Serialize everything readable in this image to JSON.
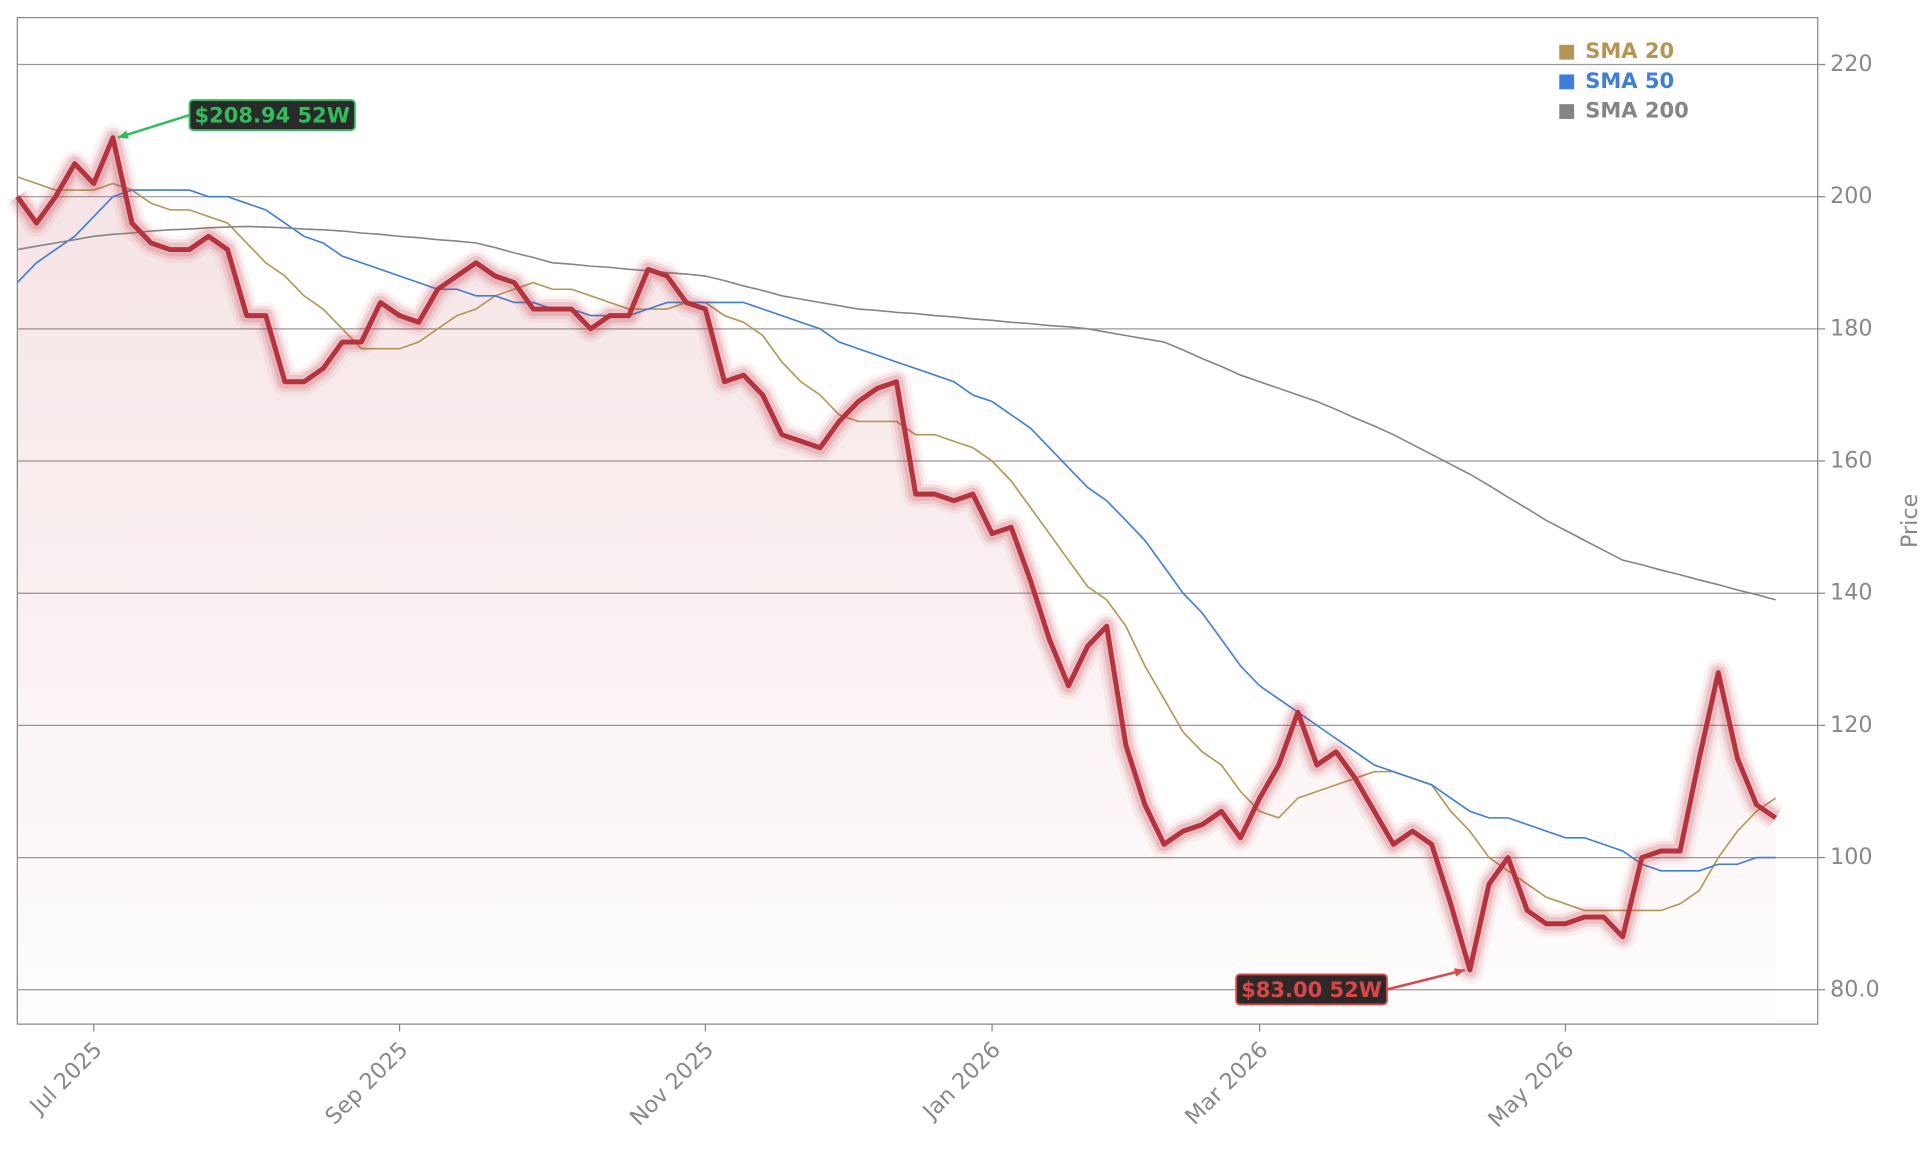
{
  "chart_data": {
    "type": "line",
    "categories": [
      null,
      null,
      null,
      null,
      "Jul 2025",
      null,
      null,
      null,
      null,
      null,
      null,
      null,
      null,
      null,
      null,
      null,
      null,
      null,
      null,
      null,
      "Sep 2025",
      null,
      null,
      null,
      null,
      null,
      null,
      null,
      null,
      null,
      null,
      null,
      null,
      null,
      null,
      null,
      "Nov 2025",
      null,
      null,
      null,
      null,
      null,
      null,
      null,
      null,
      null,
      null,
      null,
      null,
      null,
      null,
      "Jan 2026",
      null,
      null,
      null,
      null,
      null,
      null,
      null,
      null,
      null,
      null,
      null,
      null,
      null,
      "Mar 2026",
      null,
      null,
      null,
      null,
      null,
      null,
      null,
      null,
      null,
      null,
      null,
      null,
      null,
      null,
      null,
      "May 2026",
      null,
      null,
      null,
      null,
      null,
      null,
      null,
      null,
      null,
      null,
      null
    ],
    "values": [
      200,
      196,
      200,
      205,
      202,
      208.94,
      196,
      193,
      192,
      192,
      194,
      192,
      182,
      182,
      172,
      172,
      174,
      178,
      178,
      184,
      182,
      181,
      186,
      188,
      190,
      188,
      187,
      183,
      183,
      183,
      180,
      182,
      182,
      189,
      188,
      184,
      183,
      172,
      173,
      170,
      164,
      163,
      162,
      166,
      169,
      171,
      172,
      155,
      155,
      154,
      155,
      149,
      150,
      142,
      133,
      126,
      132,
      135,
      117,
      108,
      102,
      104,
      105,
      107,
      103,
      109,
      114,
      122,
      114,
      116,
      112,
      107,
      102,
      104,
      102,
      93,
      83,
      96,
      100,
      92,
      90,
      90,
      91,
      91,
      88,
      100,
      101,
      101,
      115,
      128,
      115,
      108,
      106
    ],
    "color": "#b8323c",
    "series": [
      {
        "name": "SMA 20",
        "color": "#b5954f",
        "values": [
          203,
          202,
          201,
          201,
          201,
          202,
          201,
          199,
          198,
          198,
          197,
          196,
          193,
          190,
          188,
          185,
          183,
          180,
          177,
          177,
          177,
          178,
          180,
          182,
          183,
          185,
          186,
          187,
          186,
          186,
          185,
          184,
          183,
          183,
          183,
          184,
          184,
          182,
          181,
          179,
          175,
          172,
          170,
          167,
          166,
          166,
          166,
          164,
          164,
          163,
          162,
          160,
          157,
          153,
          149,
          145,
          141,
          139,
          135,
          129,
          124,
          119,
          116,
          114,
          110,
          107,
          106,
          109,
          110,
          111,
          112,
          113,
          113,
          112,
          111,
          107,
          104,
          100,
          98,
          96,
          94,
          93,
          92,
          92,
          92,
          92,
          92,
          93,
          95,
          100,
          104,
          107,
          109
        ]
      },
      {
        "name": "SMA 50",
        "color": "#3b7de0",
        "values": [
          187,
          190,
          192,
          194,
          197,
          200,
          201,
          201,
          201,
          201,
          200,
          200,
          199,
          198,
          196,
          194,
          193,
          191,
          190,
          189,
          188,
          187,
          186,
          186,
          185,
          185,
          184,
          184,
          183,
          183,
          182,
          182,
          182,
          183,
          184,
          184,
          184,
          184,
          184,
          183,
          182,
          181,
          180,
          178,
          177,
          176,
          175,
          174,
          173,
          172,
          170,
          169,
          167,
          165,
          162,
          159,
          156,
          154,
          151,
          148,
          144,
          140,
          137,
          133,
          129,
          126,
          124,
          122,
          120,
          118,
          116,
          114,
          113,
          112,
          111,
          109,
          107,
          106,
          106,
          105,
          104,
          103,
          103,
          102,
          101,
          99,
          98,
          98,
          98,
          99,
          99,
          100,
          100
        ]
      },
      {
        "name": "SMA 200",
        "color": "#858585",
        "values": [
          192,
          192.5,
          193,
          193.5,
          194,
          194.3,
          194.5,
          194.8,
          195,
          195.1,
          195.3,
          195.4,
          195.5,
          195.4,
          195.3,
          195.1,
          195,
          194.8,
          194.5,
          194.3,
          194,
          193.8,
          193.5,
          193.3,
          193,
          192.3,
          191.5,
          190.8,
          190,
          189.8,
          189.5,
          189.3,
          189,
          188.8,
          188.5,
          188.3,
          188,
          187.3,
          186.5,
          185.8,
          185,
          184.5,
          184,
          183.5,
          183,
          182.8,
          182.5,
          182.3,
          182,
          181.8,
          181.5,
          181.3,
          181,
          180.8,
          180.5,
          180.3,
          180,
          179.5,
          179,
          178.5,
          178,
          176.8,
          175.5,
          174.3,
          173,
          172,
          171,
          170,
          169,
          167.8,
          166.5,
          165.3,
          164,
          162.5,
          161,
          159.5,
          158,
          156.3,
          154.5,
          152.8,
          151,
          149.5,
          148,
          146.5,
          145,
          144.3,
          143.5,
          142.8,
          142,
          141.3,
          140.5,
          139.8,
          139
        ]
      }
    ],
    "ylabel": "Price",
    "ylim": [
      74.8,
      227.1
    ],
    "yticks": [
      {
        "value": 80,
        "label": "80.0"
      },
      100,
      120,
      140,
      160,
      180,
      200,
      220
    ],
    "grid": true,
    "legend": "upper right",
    "annotations": [
      {
        "text": "$208.94 52W",
        "color": "#2fbf5a"
      },
      {
        "text": "$83.00 52W",
        "color": "#e04545"
      }
    ]
  }
}
